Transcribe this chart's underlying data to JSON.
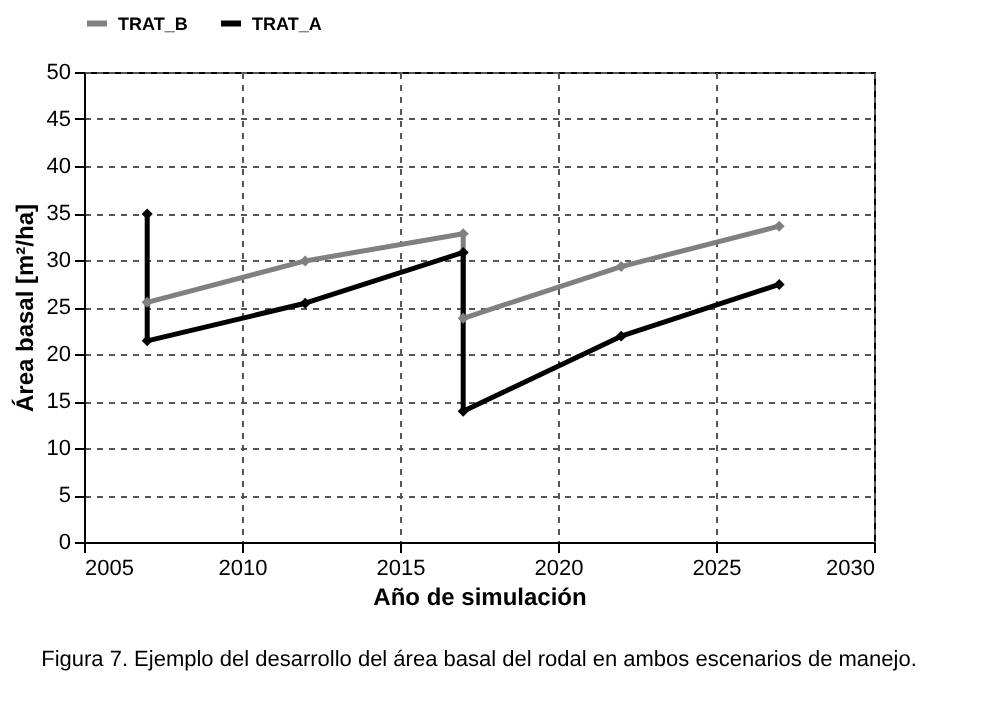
{
  "chart_data": {
    "type": "line",
    "xlabel": "Año de simulación",
    "ylabel": "Área basal [m²/ha]",
    "series": [
      {
        "name": "TRAT_B",
        "color": "#808080",
        "x": [
          2007,
          2012,
          2017,
          2017,
          2022,
          2027
        ],
        "values": [
          25.5,
          29.9,
          32.8,
          23.8,
          29.3,
          33.6
        ]
      },
      {
        "name": "TRAT_A",
        "color": "#000000",
        "x": [
          2007,
          2007,
          2012,
          2017,
          2017,
          2022,
          2027
        ],
        "values": [
          34.9,
          21.4,
          25.4,
          30.8,
          13.9,
          21.9,
          27.4
        ]
      }
    ],
    "xlim": [
      2005,
      2030
    ],
    "xticks": [
      2005,
      2010,
      2015,
      2020,
      2025,
      2030
    ],
    "ylim": [
      0,
      50
    ],
    "yticks": [
      0,
      5,
      10,
      15,
      20,
      25,
      30,
      35,
      40,
      45,
      50
    ],
    "grid": true,
    "legend": "top",
    "marker": "diamond",
    "line_style": "solid",
    "annotations": [
      "Figura 7. Ejemplo del desarrollo del área basal del rodal en ambos escenarios de manejo."
    ]
  }
}
